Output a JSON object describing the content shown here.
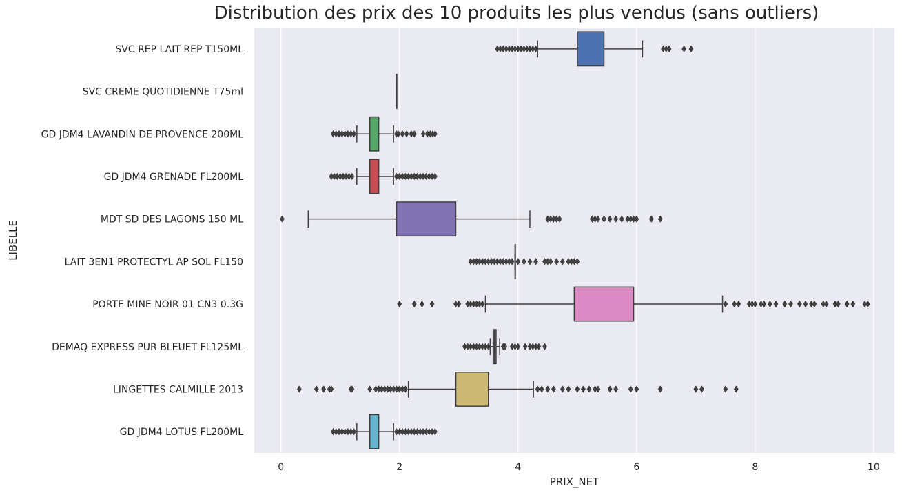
{
  "chart_data": {
    "type": "boxplot",
    "orientation": "horizontal",
    "title": "Distribution des prix des 10 produits les plus vendus (sans outliers)",
    "xlabel": "PRIX_NET",
    "ylabel": "LIBELLE",
    "xlim": [
      -0.45,
      10.35
    ],
    "xticks": [
      0,
      2,
      4,
      6,
      8,
      10
    ],
    "grid": true,
    "legend": "none",
    "background": "#eaeaf2",
    "series": [
      {
        "label": "SVC REP LAIT REP T150ML",
        "color": "#4c72b0",
        "whislo": 4.33,
        "q1": 5.0,
        "med": 5.0,
        "q3": 5.45,
        "whishi": 6.1,
        "fliers": [
          3.65,
          3.7,
          3.75,
          3.8,
          3.85,
          3.9,
          3.95,
          4.0,
          4.05,
          4.1,
          4.15,
          4.2,
          4.25,
          4.3,
          6.45,
          6.5,
          6.55,
          6.8,
          6.92
        ]
      },
      {
        "label": "SVC CREME QUOTIDIENNE T75ml",
        "color": "#dd8452",
        "whislo": 1.95,
        "q1": 1.95,
        "med": 1.95,
        "q3": 1.95,
        "whishi": 1.95,
        "fliers": []
      },
      {
        "label": "GD JDM4 LAVANDIN DE PROVENCE 200ML",
        "color": "#55a868",
        "whislo": 1.28,
        "q1": 1.5,
        "med": 1.5,
        "q3": 1.65,
        "whishi": 1.9,
        "fliers": [
          0.88,
          0.93,
          0.98,
          1.03,
          1.08,
          1.13,
          1.18,
          1.23,
          1.95,
          1.98,
          2.05,
          2.12,
          2.2,
          2.25,
          2.4,
          2.47,
          2.52,
          2.56,
          2.6
        ]
      },
      {
        "label": "GD JDM4 GRENADE FL200ML",
        "color": "#c44e52",
        "whislo": 1.28,
        "q1": 1.5,
        "med": 1.5,
        "q3": 1.65,
        "whishi": 1.9,
        "fliers": [
          0.85,
          0.9,
          0.95,
          1.0,
          1.05,
          1.1,
          1.15,
          1.2,
          1.95,
          2.0,
          2.05,
          2.1,
          2.15,
          2.2,
          2.25,
          2.3,
          2.35,
          2.4,
          2.45,
          2.5,
          2.55,
          2.6
        ]
      },
      {
        "label": "MDT SD DES LAGONS 150 ML",
        "color": "#8172b3",
        "whislo": 0.46,
        "q1": 1.95,
        "med": 1.95,
        "q3": 2.95,
        "whishi": 4.2,
        "fliers": [
          0.02,
          4.5,
          4.55,
          4.6,
          4.65,
          4.7,
          5.25,
          5.3,
          5.35,
          5.45,
          5.55,
          5.65,
          5.75,
          5.85,
          5.9,
          5.95,
          6.0,
          6.25,
          6.4
        ]
      },
      {
        "label": "LAIT 3EN1 PROTECTYL AP SOL FL150",
        "color": "#937860",
        "whislo": 3.95,
        "q1": 3.95,
        "med": 3.95,
        "q3": 3.95,
        "whishi": 3.95,
        "fliers": [
          3.2,
          3.25,
          3.3,
          3.35,
          3.4,
          3.45,
          3.5,
          3.55,
          3.6,
          3.65,
          3.7,
          3.75,
          3.8,
          3.85,
          3.9,
          4.0,
          4.1,
          4.2,
          4.3,
          4.45,
          4.5,
          4.55,
          4.65,
          4.75,
          4.85,
          4.9,
          4.95,
          5.0
        ]
      },
      {
        "label": "PORTE MINE NOIR 01 CN3 0.3G",
        "color": "#da8bc3",
        "whislo": 3.45,
        "q1": 4.95,
        "med": 4.95,
        "q3": 5.95,
        "whishi": 7.45,
        "fliers": [
          2.0,
          2.25,
          2.38,
          2.55,
          2.95,
          3.0,
          3.15,
          3.2,
          3.25,
          3.3,
          3.35,
          3.4,
          7.5,
          7.65,
          7.72,
          7.9,
          7.95,
          8.0,
          8.1,
          8.15,
          8.25,
          8.35,
          8.5,
          8.6,
          8.75,
          8.85,
          8.95,
          9.0,
          9.15,
          9.2,
          9.35,
          9.4,
          9.55,
          9.65,
          9.85,
          9.9
        ]
      },
      {
        "label": "DEMAQ EXPRESS PUR BLEUET FL125ML",
        "color": "#8c8c8c",
        "whislo": 3.53,
        "q1": 3.58,
        "med": 3.6,
        "q3": 3.63,
        "whishi": 3.69,
        "fliers": [
          3.1,
          3.15,
          3.2,
          3.25,
          3.3,
          3.35,
          3.4,
          3.45,
          3.5,
          3.75,
          3.78,
          3.9,
          3.95,
          4.0,
          4.12,
          4.2,
          4.25,
          4.3,
          4.35,
          4.45
        ]
      },
      {
        "label": "LINGETTES CALMILLE 2013",
        "color": "#ccb974",
        "whislo": 2.15,
        "q1": 2.95,
        "med": 2.95,
        "q3": 3.5,
        "whishi": 4.26,
        "fliers": [
          0.31,
          0.6,
          0.72,
          0.82,
          0.85,
          1.18,
          1.2,
          1.5,
          1.6,
          1.65,
          1.7,
          1.75,
          1.8,
          1.85,
          1.9,
          1.95,
          2.0,
          2.05,
          2.1,
          4.33,
          4.4,
          4.5,
          4.6,
          4.75,
          4.85,
          5.0,
          5.1,
          5.2,
          5.3,
          5.35,
          5.55,
          5.65,
          5.9,
          6.0,
          6.4,
          7.0,
          7.1,
          7.5,
          7.68
        ]
      },
      {
        "label": "GD JDM4 LOTUS FL200ML",
        "color": "#64b5cd",
        "whislo": 1.28,
        "q1": 1.5,
        "med": 1.5,
        "q3": 1.65,
        "whishi": 1.9,
        "fliers": [
          0.88,
          0.93,
          0.98,
          1.03,
          1.08,
          1.13,
          1.18,
          1.23,
          1.95,
          2.0,
          2.05,
          2.1,
          2.15,
          2.2,
          2.25,
          2.3,
          2.35,
          2.4,
          2.45,
          2.5,
          2.55,
          2.6
        ]
      }
    ]
  }
}
